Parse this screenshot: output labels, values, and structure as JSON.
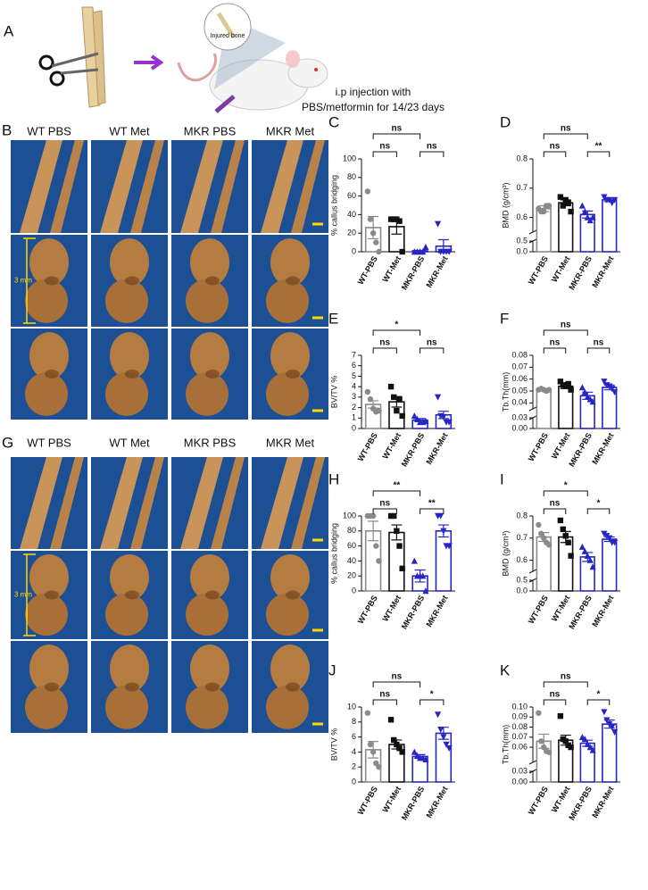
{
  "panel_a": {
    "label": "A",
    "callout": "Injured bone",
    "caption": [
      "i.p injection with",
      "PBS/metformin for 14/23 days"
    ]
  },
  "panel_b": {
    "label": "B",
    "columns": [
      "WT PBS",
      "WT Met",
      "MKR PBS",
      "MKR Met"
    ],
    "scale_label": "3 mm"
  },
  "panel_g": {
    "label": "G",
    "columns": [
      "WT PBS",
      "WT Met",
      "MKR PBS",
      "MKR Met"
    ],
    "scale_label": "3 mm"
  },
  "chart_data": [
    {
      "type": "bar",
      "label": "C",
      "ylabel": "% callus bridging",
      "categories": [
        "WT-PBS",
        "WT-Met",
        "MKR-PBS",
        "MKR-Met"
      ],
      "colors": [
        "#8a8a8a",
        "#111111",
        "#2626c4",
        "#2626c4"
      ],
      "markers": [
        "circle",
        "square",
        "triangle",
        "triangle-down"
      ],
      "values": [
        26,
        27,
        1,
        6
      ],
      "errors": [
        12,
        8,
        0.5,
        7
      ],
      "points": [
        [
          65,
          35,
          20,
          10,
          0
        ],
        [
          35,
          35,
          35,
          33,
          0
        ],
        [
          0,
          0,
          0,
          0,
          5
        ],
        [
          30,
          0,
          0,
          0,
          0
        ]
      ],
      "ylim": [
        0,
        100
      ],
      "yticks": [
        0,
        20,
        40,
        60,
        80,
        100
      ],
      "comparisons": [
        {
          "groups": [
            0,
            2
          ],
          "label": "ns"
        },
        {
          "groups": [
            0,
            1
          ],
          "label": "ns"
        },
        {
          "groups": [
            2,
            3
          ],
          "label": "ns"
        }
      ]
    },
    {
      "type": "bar",
      "label": "D",
      "ylabel": "BMD (g/cm³)",
      "categories": [
        "WT-PBS",
        "WT-Met",
        "MKR-PBS",
        "MKR-Met"
      ],
      "colors": [
        "#8a8a8a",
        "#111111",
        "#2626c4",
        "#2626c4"
      ],
      "markers": [
        "circle",
        "square",
        "triangle",
        "triangle-down"
      ],
      "values": [
        0.63,
        0.65,
        0.61,
        0.66
      ],
      "errors": [
        0.01,
        0.01,
        0.012,
        0.006
      ],
      "points": [
        [
          0.63,
          0.62,
          0.62,
          0.64,
          0.64
        ],
        [
          0.67,
          0.64,
          0.66,
          0.65,
          0.62
        ],
        [
          0.64,
          0.62,
          0.6,
          0.59,
          0.6
        ],
        [
          0.67,
          0.66,
          0.66,
          0.65,
          0.66
        ]
      ],
      "ylim": [
        0.55,
        0.8
      ],
      "yticks": [
        0.6,
        0.7,
        0.8
      ],
      "ylim_lower": [
        0,
        0.5
      ],
      "yticks_lower": [
        {
          "value": 0,
          "label": "0.0"
        },
        0.5
      ],
      "comparisons": [
        {
          "groups": [
            0,
            2
          ],
          "label": "ns"
        },
        {
          "groups": [
            0,
            1
          ],
          "label": "ns"
        },
        {
          "groups": [
            2,
            3
          ],
          "label": "**"
        }
      ]
    },
    {
      "type": "bar",
      "label": "E",
      "ylabel": "BV/TV %",
      "categories": [
        "WT-PBS",
        "WT-Met",
        "MKR-PBS",
        "MKR-Met"
      ],
      "colors": [
        "#8a8a8a",
        "#111111",
        "#2626c4",
        "#2626c4"
      ],
      "markers": [
        "circle",
        "square",
        "triangle",
        "triangle-down"
      ],
      "values": [
        2.3,
        2.55,
        0.8,
        1.3
      ],
      "errors": [
        0.35,
        0.5,
        0.15,
        0.35
      ],
      "points": [
        [
          3.5,
          2.8,
          1.9,
          1.6,
          1.7
        ],
        [
          4,
          3,
          1.7,
          2.8,
          1.2
        ],
        [
          1.2,
          0.9,
          0.6,
          0.6,
          0.7
        ],
        [
          3,
          1.2,
          1.1,
          0.6,
          0.6
        ]
      ],
      "ylim": [
        0,
        7
      ],
      "yticks": [
        0,
        1,
        2,
        3,
        4,
        5,
        6,
        7
      ],
      "comparisons": [
        {
          "groups": [
            0,
            2
          ],
          "label": "*"
        },
        {
          "groups": [
            0,
            1
          ],
          "label": "ns"
        },
        {
          "groups": [
            2,
            3
          ],
          "label": "ns"
        }
      ]
    },
    {
      "type": "bar",
      "label": "F",
      "ylabel": "Tb.Th(mm)",
      "categories": [
        "WT-PBS",
        "WT-Met",
        "MKR-PBS",
        "MKR-Met"
      ],
      "colors": [
        "#8a8a8a",
        "#111111",
        "#2626c4",
        "#2626c4"
      ],
      "markers": [
        "circle",
        "square",
        "triangle",
        "triangle-down"
      ],
      "values": [
        0.051,
        0.054,
        0.046,
        0.053
      ],
      "errors": [
        0.001,
        0.002,
        0.003,
        0.002
      ],
      "points": [
        [
          0.051,
          0.052,
          0.051,
          0.05,
          0.051
        ],
        [
          0.058,
          0.055,
          0.054,
          0.056,
          0.051
        ],
        [
          0.053,
          0.049,
          0.045,
          0.043,
          0.041
        ],
        [
          0.058,
          0.055,
          0.054,
          0.052,
          0.049
        ]
      ],
      "ylim": [
        0.035,
        0.08
      ],
      "yticks": [
        0.04,
        0.05,
        0.06,
        0.07,
        0.08
      ],
      "ylim_lower": [
        0,
        0.03
      ],
      "yticks_lower": [
        {
          "value": 0,
          "label": "0.00"
        },
        0.03
      ],
      "comparisons": [
        {
          "groups": [
            0,
            2
          ],
          "label": "ns"
        },
        {
          "groups": [
            0,
            1
          ],
          "label": "ns"
        },
        {
          "groups": [
            2,
            3
          ],
          "label": "ns"
        }
      ]
    },
    {
      "type": "bar",
      "label": "H",
      "ylabel": "% callus bridging",
      "categories": [
        "WT-PBS",
        "WT-Met",
        "MKR-PBS",
        "MKR-Met"
      ],
      "colors": [
        "#8a8a8a",
        "#111111",
        "#2626c4",
        "#2626c4"
      ],
      "markers": [
        "circle",
        "square",
        "triangle",
        "triangle-down"
      ],
      "values": [
        80,
        78,
        20,
        80
      ],
      "errors": [
        13,
        10,
        8,
        8
      ],
      "points": [
        [
          100,
          100,
          100,
          60,
          40
        ],
        [
          100,
          100,
          80,
          60,
          30
        ],
        [
          40,
          20,
          20,
          20,
          0
        ],
        [
          100,
          100,
          80,
          60,
          60
        ]
      ],
      "ylim": [
        0,
        100
      ],
      "yticks": [
        0,
        20,
        40,
        60,
        80,
        100
      ],
      "comparisons": [
        {
          "groups": [
            0,
            2
          ],
          "label": "**"
        },
        {
          "groups": [
            0,
            1
          ],
          "label": "ns"
        },
        {
          "groups": [
            2,
            3
          ],
          "label": "**"
        }
      ]
    },
    {
      "type": "bar",
      "label": "I",
      "ylabel": "BMD (g/cm³)",
      "categories": [
        "WT-PBS",
        "WT-Met",
        "MKR-PBS",
        "MKR-Met"
      ],
      "colors": [
        "#8a8a8a",
        "#111111",
        "#2626c4",
        "#2626c4"
      ],
      "markers": [
        "circle",
        "square",
        "triangle",
        "triangle-down"
      ],
      "values": [
        0.705,
        0.705,
        0.615,
        0.695
      ],
      "errors": [
        0.02,
        0.025,
        0.02,
        0.01
      ],
      "points": [
        [
          0.76,
          0.72,
          0.7,
          0.68,
          0.67
        ],
        [
          0.78,
          0.74,
          0.71,
          0.68,
          0.62
        ],
        [
          0.66,
          0.64,
          0.62,
          0.6,
          0.57
        ],
        [
          0.72,
          0.71,
          0.7,
          0.68,
          0.68
        ]
      ],
      "ylim": [
        0.55,
        0.8
      ],
      "yticks": [
        0.6,
        0.7,
        0.8
      ],
      "ylim_lower": [
        0,
        0.5
      ],
      "yticks_lower": [
        {
          "value": 0,
          "label": "0.0"
        },
        0.5
      ],
      "comparisons": [
        {
          "groups": [
            0,
            2
          ],
          "label": "*"
        },
        {
          "groups": [
            0,
            1
          ],
          "label": "ns"
        },
        {
          "groups": [
            2,
            3
          ],
          "label": "*"
        }
      ]
    },
    {
      "type": "bar",
      "label": "J",
      "ylabel": "BV/TV %",
      "categories": [
        "WT-PBS",
        "WT-Met",
        "MKR-PBS",
        "MKR-Met"
      ],
      "colors": [
        "#8a8a8a",
        "#111111",
        "#2626c4",
        "#2626c4"
      ],
      "markers": [
        "circle",
        "square",
        "triangle",
        "triangle-down"
      ],
      "values": [
        4.3,
        5,
        3.4,
        6.5
      ],
      "errors": [
        1.1,
        0.6,
        0.25,
        0.8
      ],
      "points": [
        [
          9.2,
          5,
          4,
          2.5,
          2
        ],
        [
          8.3,
          5.6,
          5,
          4.5,
          4
        ],
        [
          4,
          3.5,
          3.2,
          3.2,
          3
        ],
        [
          9,
          7,
          6,
          5,
          4.5
        ]
      ],
      "ylim": [
        0,
        10
      ],
      "yticks": [
        0,
        2,
        4,
        6,
        8,
        10
      ],
      "comparisons": [
        {
          "groups": [
            0,
            2
          ],
          "label": "ns"
        },
        {
          "groups": [
            0,
            1
          ],
          "label": "ns"
        },
        {
          "groups": [
            2,
            3
          ],
          "label": "*"
        }
      ]
    },
    {
      "type": "bar",
      "label": "K",
      "ylabel": "Tb.Th(mm)",
      "categories": [
        "WT-PBS",
        "WT-Met",
        "MKR-PBS",
        "MKR-Met"
      ],
      "colors": [
        "#8a8a8a",
        "#111111",
        "#2626c4",
        "#2626c4"
      ],
      "markers": [
        "circle",
        "square",
        "triangle",
        "triangle-down"
      ],
      "values": [
        0.066,
        0.067,
        0.064,
        0.083
      ],
      "errors": [
        0.007,
        0.005,
        0.003,
        0.004
      ],
      "points": [
        [
          0.094,
          0.066,
          0.06,
          0.056,
          0.055
        ],
        [
          0.091,
          0.068,
          0.066,
          0.062,
          0.06
        ],
        [
          0.07,
          0.068,
          0.063,
          0.06,
          0.057
        ],
        [
          0.095,
          0.087,
          0.083,
          0.08,
          0.075
        ]
      ],
      "ylim": [
        0.045,
        0.1
      ],
      "yticks": [
        0.06,
        0.07,
        0.08,
        0.09,
        {
          "value": 0.1,
          "label": "0.10"
        }
      ],
      "ylim_lower": [
        0,
        0.03
      ],
      "yticks_lower": [
        {
          "value": 0,
          "label": "0.00"
        },
        0.03
      ],
      "comparisons": [
        {
          "groups": [
            0,
            2
          ],
          "label": "ns"
        },
        {
          "groups": [
            0,
            1
          ],
          "label": "ns"
        },
        {
          "groups": [
            2,
            3
          ],
          "label": "*"
        }
      ]
    }
  ]
}
